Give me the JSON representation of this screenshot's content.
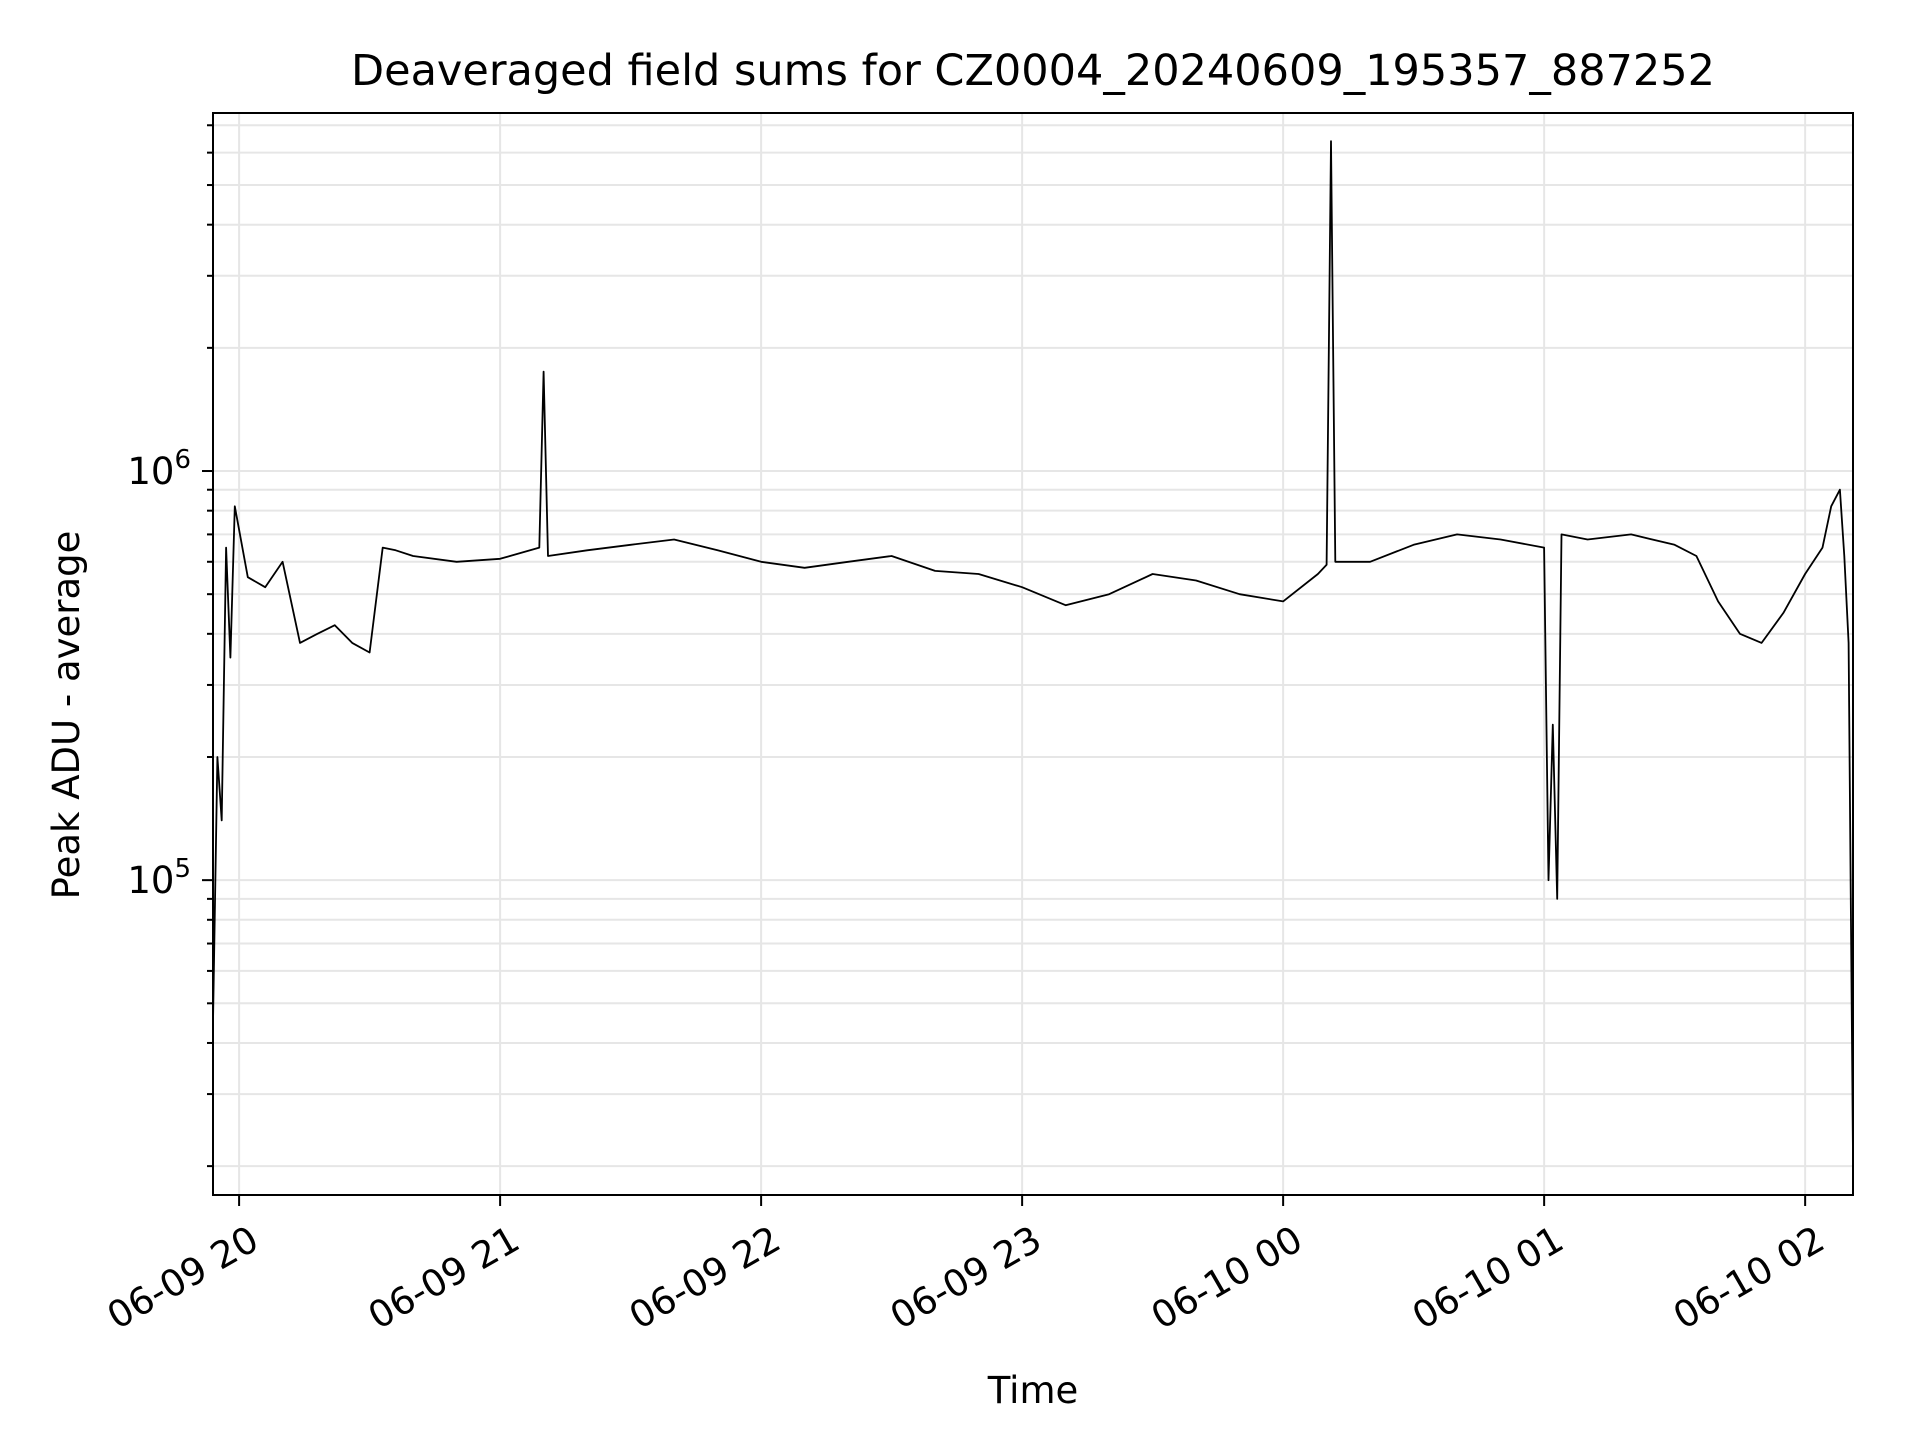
{
  "chart_data": {
    "type": "line",
    "title": "Deaveraged field sums for CZ0004_20240609_195357_887252",
    "xlabel": "Time",
    "ylabel": "Peak ADU - average",
    "yscale": "log",
    "ylim": [
      17000,
      7500000
    ],
    "xlim": [
      "2024-06-09 19:54",
      "2024-06-10 02:11"
    ],
    "grid": true,
    "line_color": "#000000",
    "grid_color": "#e6e6e6",
    "x_ticks": [
      {
        "value": "2024-06-09 20:00",
        "label": "06-09 20"
      },
      {
        "value": "2024-06-09 21:00",
        "label": "06-09 21"
      },
      {
        "value": "2024-06-09 22:00",
        "label": "06-09 22"
      },
      {
        "value": "2024-06-09 23:00",
        "label": "06-09 23"
      },
      {
        "value": "2024-06-10 00:00",
        "label": "06-10 00"
      },
      {
        "value": "2024-06-10 01:00",
        "label": "06-10 01"
      },
      {
        "value": "2024-06-10 02:00",
        "label": "06-10 02"
      }
    ],
    "y_ticks": [
      {
        "value": 100000,
        "base": "10",
        "exp": "5"
      },
      {
        "value": 1000000,
        "base": "10",
        "exp": "6"
      }
    ],
    "series": [
      {
        "x": [
          "2024-06-09 19:54",
          "2024-06-09 19:55",
          "2024-06-09 19:56",
          "2024-06-09 19:57",
          "2024-06-09 19:58",
          "2024-06-09 19:59",
          "2024-06-09 20:02",
          "2024-06-09 20:06",
          "2024-06-09 20:10",
          "2024-06-09 20:14",
          "2024-06-09 20:18",
          "2024-06-09 20:22",
          "2024-06-09 20:26",
          "2024-06-09 20:30",
          "2024-06-09 20:33",
          "2024-06-09 20:36",
          "2024-06-09 20:40",
          "2024-06-09 20:50",
          "2024-06-09 21:00",
          "2024-06-09 21:09",
          "2024-06-09 21:10",
          "2024-06-09 21:11",
          "2024-06-09 21:20",
          "2024-06-09 21:30",
          "2024-06-09 21:40",
          "2024-06-09 21:50",
          "2024-06-09 22:00",
          "2024-06-09 22:10",
          "2024-06-09 22:20",
          "2024-06-09 22:30",
          "2024-06-09 22:40",
          "2024-06-09 22:50",
          "2024-06-09 23:00",
          "2024-06-09 23:10",
          "2024-06-09 23:20",
          "2024-06-09 23:30",
          "2024-06-09 23:40",
          "2024-06-09 23:50",
          "2024-06-10 00:00",
          "2024-06-10 00:08",
          "2024-06-10 00:10",
          "2024-06-10 00:11",
          "2024-06-10 00:12",
          "2024-06-10 00:20",
          "2024-06-10 00:30",
          "2024-06-10 00:40",
          "2024-06-10 00:50",
          "2024-06-10 01:00",
          "2024-06-10 01:01",
          "2024-06-10 01:02",
          "2024-06-10 01:03",
          "2024-06-10 01:04",
          "2024-06-10 01:10",
          "2024-06-10 01:20",
          "2024-06-10 01:30",
          "2024-06-10 01:35",
          "2024-06-10 01:40",
          "2024-06-10 01:45",
          "2024-06-10 01:50",
          "2024-06-10 01:55",
          "2024-06-10 02:00",
          "2024-06-10 02:04",
          "2024-06-10 02:06",
          "2024-06-10 02:08",
          "2024-06-10 02:09",
          "2024-06-10 02:10",
          "2024-06-10 02:11"
        ],
        "values": [
          45000,
          200000,
          140000,
          650000,
          350000,
          820000,
          550000,
          520000,
          600000,
          380000,
          400000,
          420000,
          380000,
          360000,
          650000,
          640000,
          620000,
          600000,
          610000,
          650000,
          1750000,
          620000,
          640000,
          660000,
          680000,
          640000,
          600000,
          580000,
          600000,
          620000,
          570000,
          560000,
          520000,
          470000,
          500000,
          560000,
          540000,
          500000,
          480000,
          560000,
          590000,
          6400000,
          600000,
          600000,
          660000,
          700000,
          680000,
          650000,
          100000,
          240000,
          90000,
          700000,
          680000,
          700000,
          660000,
          620000,
          480000,
          400000,
          380000,
          450000,
          560000,
          650000,
          820000,
          900000,
          620000,
          380000,
          21000
        ]
      }
    ]
  }
}
